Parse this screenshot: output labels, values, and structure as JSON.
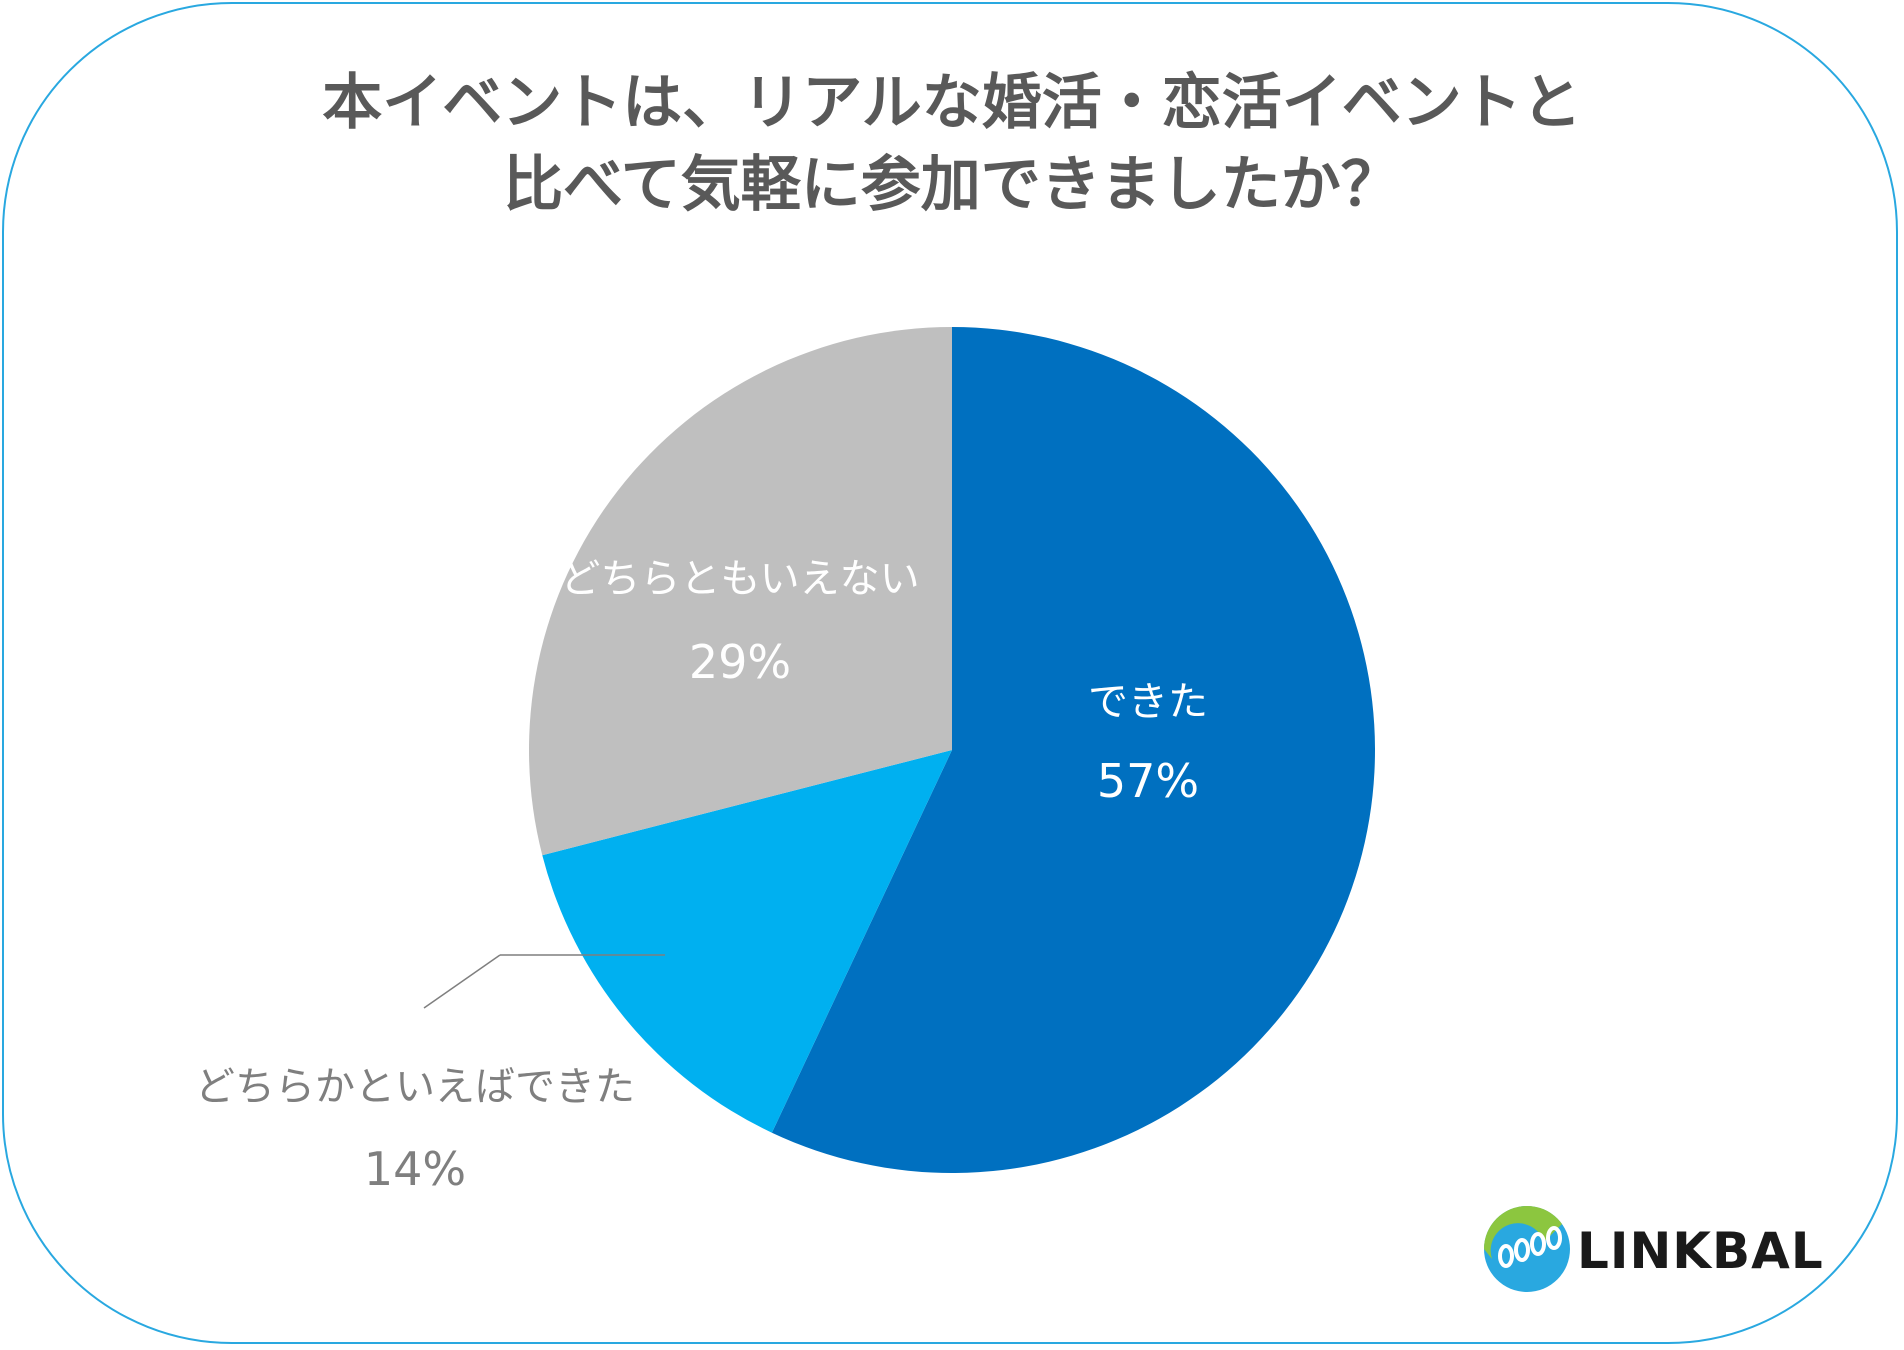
{
  "title_lines": [
    "本イベントは、リアルな婚活・恋活イベントと",
    "比べて気軽に参加できましたか？"
  ],
  "chart_data": {
    "type": "pie",
    "title": "本イベントは、リアルな婚活・恋活イベントと比べて気軽に参加できましたか？",
    "start_angle_deg": 0,
    "direction": "clockwise",
    "slices": [
      {
        "label": "できた",
        "value": 57,
        "value_label": "57%",
        "color": "#0070c0",
        "text_color": "#ffffff"
      },
      {
        "label": "どちらかといえばできた",
        "value": 14,
        "value_label": "14%",
        "color": "#00b0f0",
        "text_color": "#7f7f7f"
      },
      {
        "label": "どちらともいえない",
        "value": 29,
        "value_label": "29%",
        "color": "#bfbfbf",
        "text_color": "#ffffff"
      }
    ]
  },
  "logo": {
    "text": "LINKBAL",
    "icon": "linkbal-logo-icon",
    "colors": {
      "green": "#8cc63f",
      "blue": "#29a8e0"
    }
  },
  "frame_color": "#29a8e0",
  "title_color": "#595959"
}
